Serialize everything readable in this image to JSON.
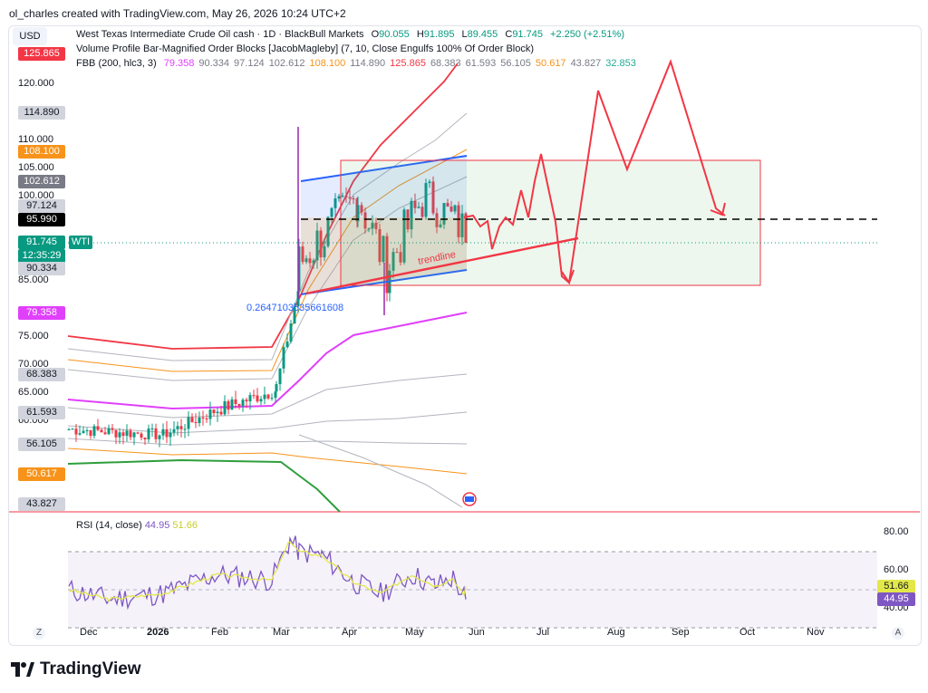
{
  "header": {
    "text": "ol_charles created with TradingView.com, May 26, 2026 10:24 UTC+2"
  },
  "currency_button": "USD",
  "legend": {
    "line1_title": "West Texas Intermediate Crude Oil cash · 1D · BlackBull Markets",
    "ohlc": [
      {
        "label": "O",
        "value": "90.055"
      },
      {
        "label": "H",
        "value": "91.895"
      },
      {
        "label": "L",
        "value": "89.455"
      },
      {
        "label": "C",
        "value": "91.745"
      },
      {
        "label": "",
        "value": "+2.250 (+2.51%)"
      }
    ],
    "line2": "Volume Profile Bar-Magnified Order Blocks [JacobMagleby] (7, 10, Close Engulfs 100% Of Order Block)",
    "line3_title": "FBB (200, hlc3, 3)",
    "fbb_values": [
      {
        "value": "79.358",
        "color": "#e040fb"
      },
      {
        "value": "90.334",
        "color": "#787b86"
      },
      {
        "value": "97.124",
        "color": "#787b86"
      },
      {
        "value": "102.612",
        "color": "#787b86"
      },
      {
        "value": "108.100",
        "color": "#f7931a"
      },
      {
        "value": "114.890",
        "color": "#787b86"
      },
      {
        "value": "125.865",
        "color": "#f23645"
      },
      {
        "value": "68.383",
        "color": "#787b86"
      },
      {
        "value": "61.593",
        "color": "#787b86"
      },
      {
        "value": "56.105",
        "color": "#787b86"
      },
      {
        "value": "50.617",
        "color": "#f7931a"
      },
      {
        "value": "43.827",
        "color": "#787b86"
      },
      {
        "value": "32.853",
        "color": "#22ab94"
      }
    ]
  },
  "price_axis": {
    "ticks": [
      "120.000",
      "110.000",
      "105.000",
      "100.000",
      "85.000",
      "75.000",
      "70.000",
      "65.000",
      "60.000"
    ],
    "tags": [
      {
        "text": "125.865",
        "bg": "#f23645",
        "fg": "#ffffff"
      },
      {
        "text": "114.890",
        "bg": "#d1d4dc",
        "fg": "#131722"
      },
      {
        "text": "108.100",
        "bg": "#f7931a",
        "fg": "#ffffff"
      },
      {
        "text": "102.612",
        "bg": "#787b86",
        "fg": "#ffffff"
      },
      {
        "text": "97.124",
        "bg": "#d1d4dc",
        "fg": "#131722"
      },
      {
        "text": "95.990",
        "bg": "#000000",
        "fg": "#ffffff"
      },
      {
        "text": "91.745",
        "bg": "#089981",
        "fg": "#ffffff"
      },
      {
        "text": "12:35:29",
        "bg": "#089981",
        "fg": "#ffffff"
      },
      {
        "text": "90.334",
        "bg": "#d1d4dc",
        "fg": "#131722"
      },
      {
        "text": "79.358",
        "bg": "#e040fb",
        "fg": "#ffffff"
      },
      {
        "text": "68.383",
        "bg": "#d1d4dc",
        "fg": "#131722"
      },
      {
        "text": "61.593",
        "bg": "#d1d4dc",
        "fg": "#131722"
      },
      {
        "text": "56.105",
        "bg": "#d1d4dc",
        "fg": "#131722"
      },
      {
        "text": "50.617",
        "bg": "#f7931a",
        "fg": "#ffffff"
      },
      {
        "text": "43.827",
        "bg": "#d1d4dc",
        "fg": "#131722"
      }
    ],
    "symbol_tag": "WTI"
  },
  "annotations": {
    "fib_label": "0.26471035356616​08",
    "trendline_label": "trendline"
  },
  "rsi": {
    "title": "RSI (14, close)",
    "value": "44.95",
    "ma_value": "51.66",
    "ticks": [
      "80.00",
      "60.00",
      "40.00"
    ],
    "value_color": "#7e57c2",
    "ma_color": "#e3e84a"
  },
  "time_axis": {
    "labels": [
      "Dec",
      "2026",
      "Feb",
      "Mar",
      "Apr",
      "May",
      "Jun",
      "Jul",
      "Aug",
      "Sep",
      "Oct",
      "Nov"
    ],
    "left_corner": "Z",
    "right_corner": "A"
  },
  "brand": "TradingView",
  "colors": {
    "up": "#089981",
    "down": "#f23645",
    "accent": "#2962ff"
  },
  "chart_data": {
    "type": "candlestick",
    "title": "West Texas Intermediate Crude Oil cash · 1D · BlackBull Markets",
    "y_range": [
      42,
      130
    ],
    "last_price": 91.745,
    "projection": {
      "description": "hand-drawn zigzag projection",
      "points": [
        [
          "2026-05-27",
          95.5
        ],
        [
          "2026-07-15",
          84.0
        ],
        [
          "2026-09-05",
          123.0
        ],
        [
          "2026-10-01",
          96.5
        ]
      ]
    },
    "horizontal_line": 95.99,
    "rsi": {
      "value": 44.95,
      "ma": 51.66,
      "range": [
        20,
        100
      ]
    }
  }
}
